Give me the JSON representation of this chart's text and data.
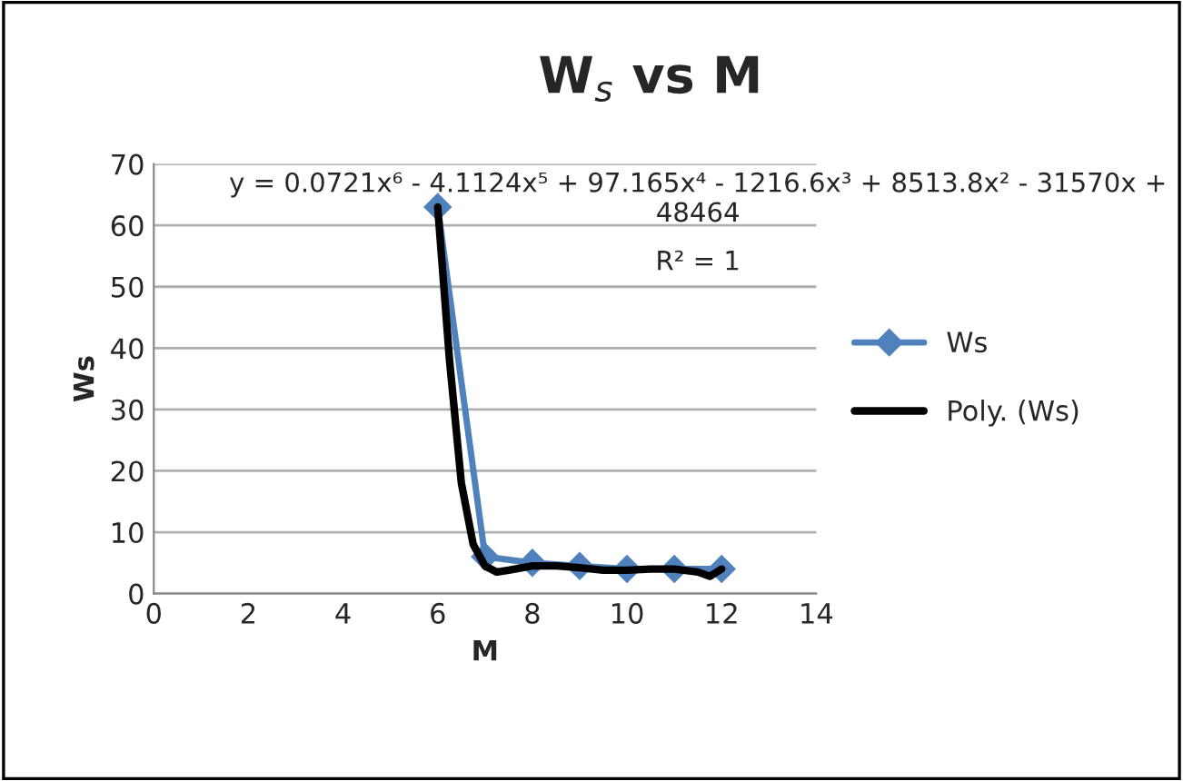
{
  "chart_data": {
    "type": "line",
    "title": "W$_{s}$ vs M",
    "xlabel": "M",
    "ylabel": "Ws",
    "xlim": [
      0,
      14
    ],
    "xticks": [
      0,
      2,
      4,
      6,
      8,
      10,
      12,
      14
    ],
    "ylim": [
      0,
      70
    ],
    "yticks": [
      0,
      10,
      20,
      30,
      40,
      50,
      60,
      70
    ],
    "grid": "y",
    "legend": "right",
    "annotations": [
      "y = 0.0721x⁶ - 4.1124x⁵ + 97.165x⁴ - 1216.6x³ + 8513.8x² - 31570x + 48464",
      "R² = 1"
    ],
    "series": [
      {
        "name": "Ws",
        "color": "#4f81bd",
        "marker": "diamond",
        "x": [
          6,
          7,
          8,
          9,
          10,
          11,
          12
        ],
        "values": [
          63,
          6,
          5,
          4.5,
          4,
          4,
          4
        ]
      },
      {
        "name": "Poly. (Ws)",
        "color": "#000000",
        "marker": "none",
        "x": [
          6,
          6.25,
          6.5,
          6.75,
          7,
          7.25,
          7.5,
          8,
          8.5,
          9,
          9.5,
          10,
          10.5,
          11,
          11.5,
          11.75,
          12
        ],
        "values": [
          63,
          38,
          18,
          8,
          4.5,
          3.5,
          3.8,
          4.5,
          4.5,
          4.2,
          3.8,
          3.8,
          4,
          4,
          3.5,
          2.8,
          4
        ]
      }
    ]
  }
}
